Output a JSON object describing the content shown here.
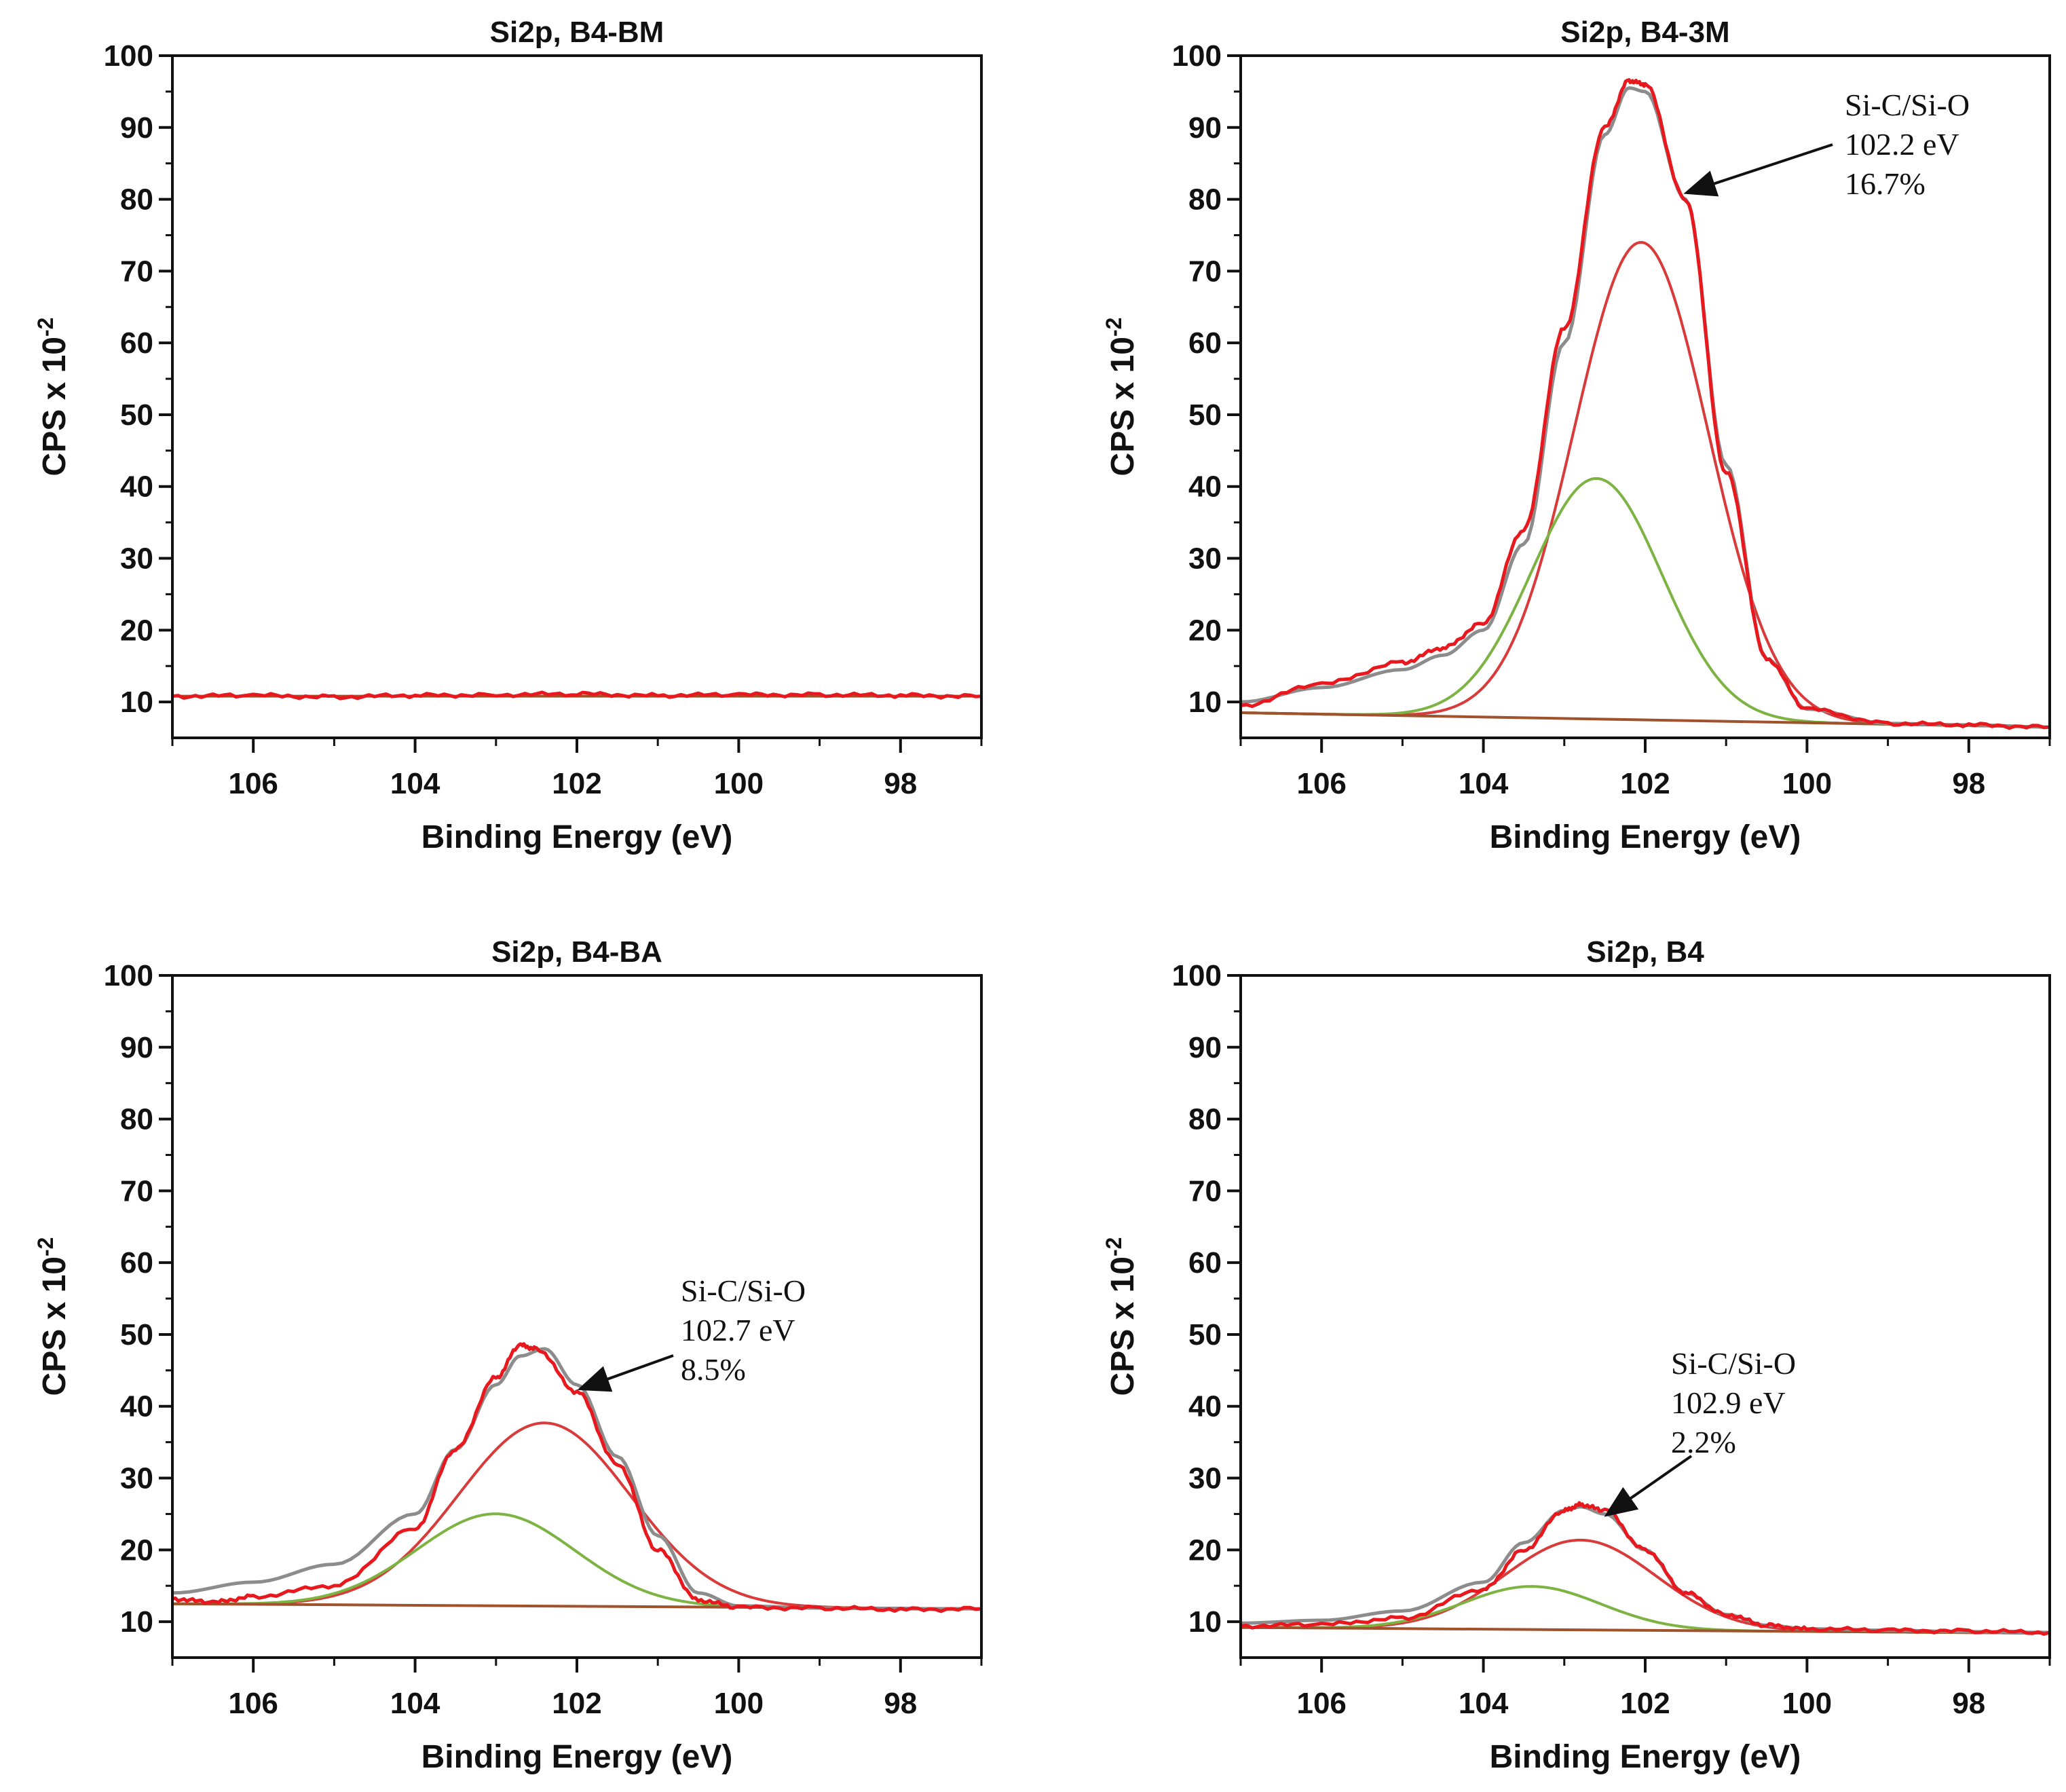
{
  "figure": "Si2p XPS spectra",
  "chart_data": [
    {
      "type": "line",
      "title": "Si2p, B4-BM",
      "xlabel": "Binding Energy (eV)",
      "ylabel": "CPS x 10",
      "ylabel_exponent": "-2",
      "xlim": [
        107,
        97
      ],
      "ylim": [
        5,
        100
      ],
      "x_ticks": [
        106,
        104,
        102,
        100,
        98
      ],
      "y_ticks": [
        10,
        20,
        30,
        40,
        50,
        60,
        70,
        80,
        90,
        100
      ],
      "baseline": [
        10.8,
        10.8
      ],
      "components": [],
      "series": [
        {
          "name": "Measured",
          "color": "#e8191e",
          "x": [
            107,
            106,
            105,
            104,
            103,
            102,
            101,
            100,
            99,
            98,
            97
          ],
          "y": [
            10.8,
            10.9,
            10.7,
            10.9,
            11.0,
            11.1,
            10.9,
            11.0,
            11.0,
            10.9,
            10.8
          ]
        },
        {
          "name": "Background",
          "color": "#a0522d",
          "x": [
            107,
            97
          ],
          "y": [
            10.8,
            10.8
          ]
        }
      ],
      "annotation": null
    },
    {
      "type": "line",
      "title": "Si2p, B4-3M",
      "xlabel": "Binding Energy (eV)",
      "ylabel": "CPS x 10",
      "ylabel_exponent": "-2",
      "xlim": [
        107,
        97
      ],
      "ylim": [
        5,
        100
      ],
      "x_ticks": [
        106,
        104,
        102,
        100,
        98
      ],
      "y_ticks": [
        10,
        20,
        30,
        40,
        50,
        60,
        70,
        80,
        90,
        100
      ],
      "baseline": [
        8.5,
        6.5
      ],
      "components": [
        {
          "name": "Component 1",
          "color": "#d93a3a",
          "center": 102.05,
          "height": 66.5,
          "fwhm": 1.95
        },
        {
          "name": "Component 2",
          "color": "#7cb342",
          "center": 102.6,
          "height": 33.5,
          "fwhm": 1.9
        }
      ],
      "series": [
        {
          "name": "Measured",
          "color": "#e8191e",
          "x": [
            107,
            106,
            105,
            104.5,
            104,
            103.5,
            103,
            102.5,
            102.2,
            102,
            101.5,
            101,
            100.5,
            100,
            99,
            98,
            97
          ],
          "y": [
            9.5,
            12.5,
            15.5,
            17.5,
            21,
            34,
            62,
            90,
            96.5,
            96,
            80,
            42,
            16,
            9,
            7,
            6.8,
            6.5
          ]
        },
        {
          "name": "Envelope",
          "color": "#8c8c8c",
          "x": [
            107,
            106,
            105,
            104.5,
            104,
            103.5,
            103,
            102.5,
            102.2,
            102,
            101.5,
            101,
            100.5,
            100,
            99,
            98,
            97
          ],
          "y": [
            10,
            12,
            14.5,
            16.5,
            20,
            32,
            60,
            89,
            95.5,
            95,
            80,
            43,
            16,
            9,
            7,
            6.8,
            6.5
          ]
        },
        {
          "name": "Background",
          "color": "#a0522d",
          "x": [
            107,
            97
          ],
          "y": [
            8.5,
            6.5
          ]
        }
      ],
      "annotation": {
        "lines": [
          "Si-C/Si-O",
          "102.2 eV",
          "16.7%"
        ]
      }
    },
    {
      "type": "line",
      "title": "Si2p, B4-BA",
      "xlabel": "Binding Energy (eV)",
      "ylabel": "CPS x 10",
      "ylabel_exponent": "-2",
      "xlim": [
        107,
        97
      ],
      "ylim": [
        5,
        100
      ],
      "x_ticks": [
        106,
        104,
        102,
        100,
        98
      ],
      "y_ticks": [
        10,
        20,
        30,
        40,
        50,
        60,
        70,
        80,
        90,
        100
      ],
      "baseline": [
        12.5,
        11.8
      ],
      "components": [
        {
          "name": "Component 1",
          "color": "#d93a3a",
          "center": 102.4,
          "height": 25.5,
          "fwhm": 2.5
        },
        {
          "name": "Component 2",
          "color": "#7cb342",
          "center": 103.0,
          "height": 12.8,
          "fwhm": 2.3
        }
      ],
      "series": [
        {
          "name": "Measured",
          "color": "#e8191e",
          "x": [
            107,
            106.5,
            106,
            105,
            104,
            103.5,
            103,
            102.7,
            102.5,
            102,
            101.5,
            101,
            100.5,
            100,
            99,
            98,
            97
          ],
          "y": [
            13.2,
            12.7,
            13.5,
            15,
            23,
            34,
            44,
            48.5,
            48,
            42,
            32,
            20,
            13,
            12,
            11.9,
            11.7,
            11.8
          ]
        },
        {
          "name": "Envelope",
          "color": "#8c8c8c",
          "x": [
            107,
            106,
            105,
            104,
            103.5,
            103,
            102.7,
            102.4,
            102,
            101.5,
            101,
            100.5,
            100,
            99,
            98,
            97
          ],
          "y": [
            14,
            15.5,
            18,
            25,
            34,
            43,
            47,
            48,
            43,
            33,
            22,
            14,
            12.2,
            11.9,
            11.8,
            11.8
          ]
        },
        {
          "name": "Background",
          "color": "#a0522d",
          "x": [
            107,
            97
          ],
          "y": [
            12.5,
            11.8
          ]
        }
      ],
      "annotation": {
        "lines": [
          "Si-C/Si-O",
          "102.7 eV",
          "8.5%"
        ]
      }
    },
    {
      "type": "line",
      "title": "Si2p, B4",
      "xlabel": "Binding Energy (eV)",
      "ylabel": "CPS x 10",
      "ylabel_exponent": "-2",
      "xlim": [
        107,
        97
      ],
      "ylim": [
        5,
        100
      ],
      "x_ticks": [
        106,
        104,
        102,
        100,
        98
      ],
      "y_ticks": [
        10,
        20,
        30,
        40,
        50,
        60,
        70,
        80,
        90,
        100
      ],
      "baseline": [
        9.2,
        8.4
      ],
      "components": [
        {
          "name": "Component 1",
          "color": "#d93a3a",
          "center": 102.8,
          "height": 12.5,
          "fwhm": 2.2
        },
        {
          "name": "Component 2",
          "color": "#7cb342",
          "center": 103.4,
          "height": 6.0,
          "fwhm": 2.0
        }
      ],
      "series": [
        {
          "name": "Measured",
          "color": "#e8191e",
          "x": [
            107,
            106,
            105,
            104,
            103.5,
            103,
            102.8,
            102.5,
            102,
            101.5,
            101,
            100.5,
            100,
            99,
            98,
            97
          ],
          "y": [
            9.4,
            9.6,
            10.5,
            14.5,
            20,
            25.5,
            26.3,
            25.5,
            20,
            14,
            11,
            9.5,
            9.0,
            8.8,
            8.7,
            8.5
          ]
        },
        {
          "name": "Envelope",
          "color": "#8c8c8c",
          "x": [
            107,
            106,
            105,
            104,
            103.5,
            103,
            102.8,
            102.5,
            102,
            101.5,
            101,
            100.5,
            100,
            99,
            98,
            97
          ],
          "y": [
            9.8,
            10.2,
            11.5,
            15.5,
            21,
            25.5,
            26,
            25,
            20,
            14,
            11,
            9.5,
            9.0,
            8.8,
            8.6,
            8.5
          ]
        },
        {
          "name": "Background",
          "color": "#a0522d",
          "x": [
            107,
            97
          ],
          "y": [
            9.2,
            8.4
          ]
        }
      ],
      "annotation": {
        "lines": [
          "Si-C/Si-O",
          "102.9 eV",
          "2.2%"
        ]
      }
    }
  ]
}
